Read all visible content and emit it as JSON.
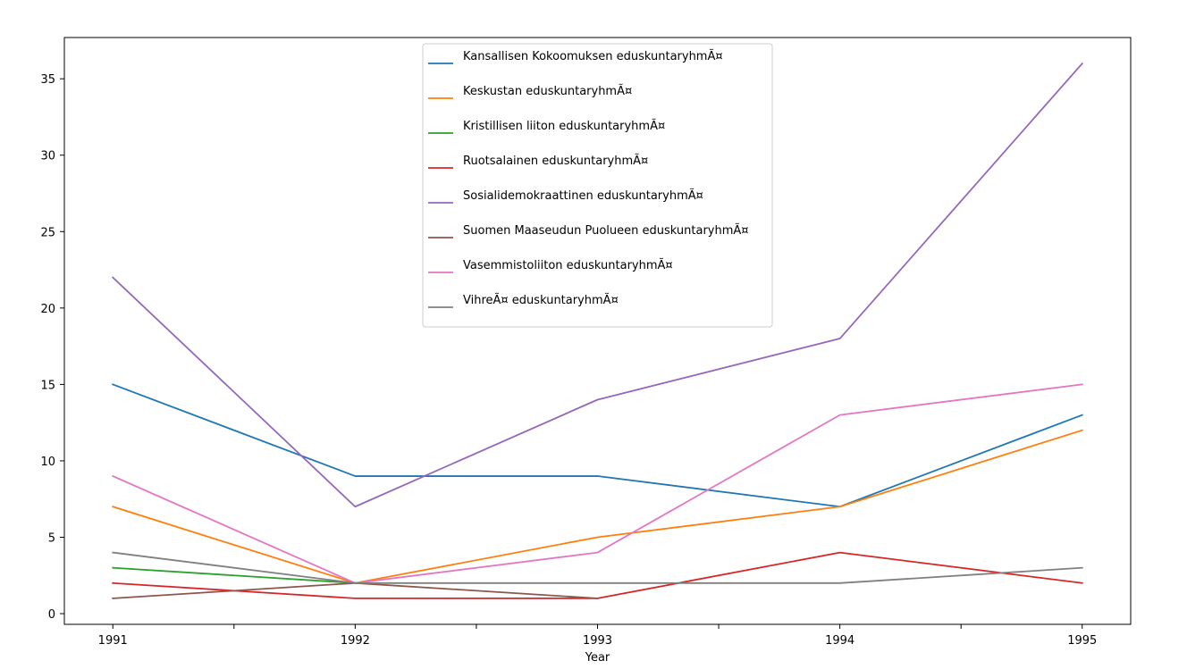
{
  "chart_data": {
    "type": "line",
    "xlabel": "Year",
    "ylabel": "",
    "x": [
      1991,
      1992,
      1993,
      1994,
      1995
    ],
    "xlim": [
      1990.8,
      1995.2
    ],
    "ylim": [
      -0.7,
      37.7
    ],
    "x_ticks": [
      1991,
      1991.5,
      1992,
      1992.5,
      1993,
      1993.5,
      1994,
      1994.5,
      1995
    ],
    "x_tick_labels": [
      "1991",
      "",
      "1992",
      "",
      "1993",
      "",
      "1994",
      "",
      "1995"
    ],
    "y_ticks": [
      0,
      5,
      10,
      15,
      20,
      25,
      30,
      35
    ],
    "y_tick_labels": [
      "0",
      "5",
      "10",
      "15",
      "20",
      "25",
      "30",
      "35"
    ],
    "grid": false,
    "legend_position": "top-center",
    "series": [
      {
        "name": "Kansallisen Kokoomuksen eduskuntaryhmÃ¤",
        "color": "#1f77b4",
        "values": [
          15,
          9,
          9,
          7,
          13
        ]
      },
      {
        "name": "Keskustan eduskuntaryhmÃ¤",
        "color": "#ff7f0e",
        "values": [
          7,
          2,
          5,
          7,
          12
        ]
      },
      {
        "name": "Kristillisen liiton eduskuntaryhmÃ¤",
        "color": "#2ca02c",
        "values": [
          3,
          2,
          null,
          null,
          null
        ]
      },
      {
        "name": "Ruotsalainen eduskuntaryhmÃ¤",
        "color": "#d62728",
        "values": [
          2,
          1,
          1,
          4,
          2
        ]
      },
      {
        "name": "Sosialidemokraattinen eduskuntaryhmÃ¤",
        "color": "#9467bd",
        "values": [
          22,
          7,
          14,
          18,
          36
        ]
      },
      {
        "name": "Suomen Maaseudun Puolueen eduskuntaryhmÃ¤",
        "color": "#8c564b",
        "values": [
          1,
          2,
          1,
          null,
          null
        ]
      },
      {
        "name": "Vasemmistoliiton eduskuntaryhmÃ¤",
        "color": "#e377c2",
        "values": [
          9,
          2,
          4,
          13,
          15
        ]
      },
      {
        "name": "VihreÃ¤ eduskuntaryhmÃ¤",
        "color": "#7f7f7f",
        "values": [
          4,
          2,
          2,
          2,
          3
        ]
      }
    ]
  }
}
